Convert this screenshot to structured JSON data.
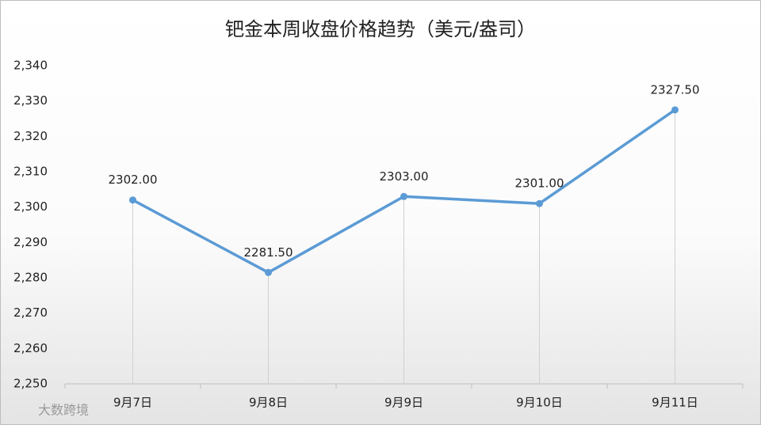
{
  "chart_data": {
    "type": "line",
    "title": "钯金本周收盘价格趋势（美元/盎司）",
    "categories": [
      "9月7日",
      "9月8日",
      "9月9日",
      "9月10日",
      "9月11日"
    ],
    "series": [
      {
        "name": "收盘价格",
        "color": "#5b9bd5",
        "values": [
          2302,
          2281.5,
          2303,
          2301,
          2327.5
        ],
        "value_labels": [
          "2302.00",
          "2281.50",
          "2303.00",
          "2301.00",
          "2327.50"
        ]
      }
    ],
    "ylim": [
      2250,
      2340
    ],
    "yticks": [
      {
        "value": 2250,
        "label": "2,250"
      },
      {
        "value": 2260,
        "label": "2,260"
      },
      {
        "value": 2270,
        "label": "2,270"
      },
      {
        "value": 2280,
        "label": "2,280"
      },
      {
        "value": 2290,
        "label": "2,290"
      },
      {
        "value": 2300,
        "label": "2,300"
      },
      {
        "value": 2310,
        "label": "2,310"
      },
      {
        "value": 2320,
        "label": "2,320"
      },
      {
        "value": 2330,
        "label": "2,330"
      },
      {
        "value": 2340,
        "label": "2,340"
      }
    ],
    "drop_lines": true
  },
  "watermark": "大数跨境"
}
